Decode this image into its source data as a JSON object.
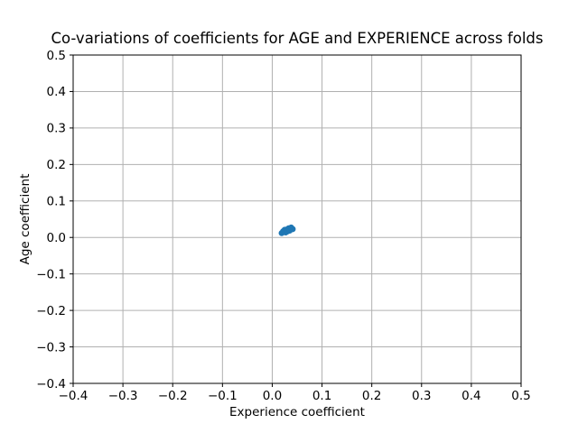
{
  "chart_data": {
    "type": "scatter",
    "title": "Co-variations of coefficients for AGE and EXPERIENCE across folds",
    "xlabel": "Experience coefficient",
    "ylabel": "Age coefficient",
    "xlim": [
      -0.4,
      0.5
    ],
    "ylim": [
      -0.4,
      0.5
    ],
    "xticks": [
      -0.4,
      -0.3,
      -0.2,
      -0.1,
      0.0,
      0.1,
      0.2,
      0.3,
      0.4,
      0.5
    ],
    "yticks": [
      -0.4,
      -0.3,
      -0.2,
      -0.1,
      0.0,
      0.1,
      0.2,
      0.3,
      0.4,
      0.5
    ],
    "xtick_labels": [
      "−0.4",
      "−0.3",
      "−0.2",
      "−0.1",
      "0.0",
      "0.1",
      "0.2",
      "0.3",
      "0.4",
      "0.5"
    ],
    "ytick_labels": [
      "−0.4",
      "−0.3",
      "−0.2",
      "−0.1",
      "0.0",
      "0.1",
      "0.2",
      "0.3",
      "0.4",
      "0.5"
    ],
    "grid": true,
    "legend": false,
    "marker_color": "#1f77b4",
    "grid_color": "#b0b0b0",
    "spine_color": "#000000",
    "series": [
      {
        "name": "folds",
        "x": [
          0.019,
          0.022,
          0.025,
          0.027,
          0.03,
          0.031,
          0.033,
          0.035,
          0.038,
          0.041
        ],
        "y": [
          0.012,
          0.017,
          0.021,
          0.014,
          0.022,
          0.017,
          0.025,
          0.019,
          0.027,
          0.023
        ]
      }
    ]
  }
}
